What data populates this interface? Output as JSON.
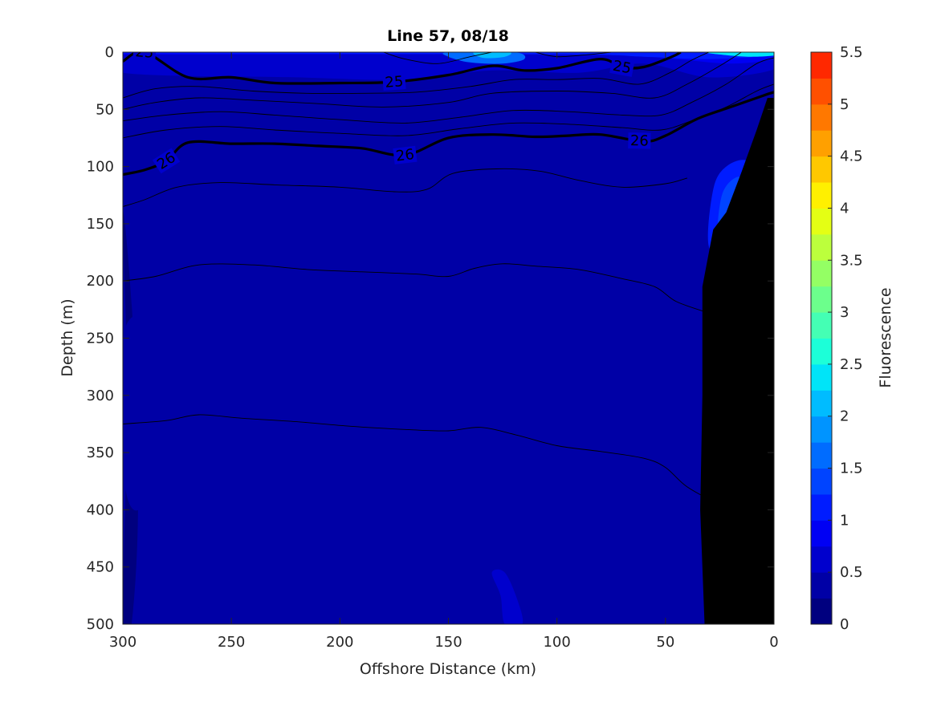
{
  "chart_data": {
    "type": "heatmap",
    "title": "Line 57, 08/18",
    "xlabel": "Offshore Distance (km)",
    "ylabel": "Depth (m)",
    "colorbar_label": "Fluorescence",
    "xlim": [
      300,
      0
    ],
    "ylim": [
      500,
      0
    ],
    "x_reversed": true,
    "y_reversed": true,
    "xticks": [
      300,
      250,
      200,
      150,
      100,
      50,
      0
    ],
    "yticks": [
      0,
      50,
      100,
      150,
      200,
      250,
      300,
      350,
      400,
      450,
      500
    ],
    "colorbar": {
      "min": 0,
      "max": 5.5,
      "ticks": [
        "0",
        "0.5",
        "1",
        "1.5",
        "2",
        "2.5",
        "3",
        "3.5",
        "4",
        "4.5",
        "5",
        "5.5"
      ],
      "levels": [
        0,
        0.25,
        0.5,
        0.75,
        1,
        1.25,
        1.5,
        1.75,
        2,
        2.25,
        2.5,
        2.75,
        3,
        3.25,
        3.5,
        3.75,
        4,
        4.25,
        4.5,
        4.75,
        5,
        5.25,
        5.5
      ],
      "colors": [
        "#00007f",
        "#0000a6",
        "#0000cd",
        "#0000f4",
        "#001cff",
        "#0044ff",
        "#006cff",
        "#0094ff",
        "#00bcff",
        "#00e4f8",
        "#1cffd8",
        "#44ffb4",
        "#6cff8c",
        "#94ff64",
        "#bcff3c",
        "#e4ff14",
        "#fff000",
        "#ffc800",
        "#ffa000",
        "#ff7800",
        "#ff5000",
        "#ff2800",
        "#f00000",
        "#c80000",
        "#a00000",
        "#800000"
      ]
    },
    "density_contours": [
      {
        "level": "25",
        "label_x": [
          290,
          175,
          70
        ],
        "points": [
          [
            300,
            8
          ],
          [
            290,
            0
          ],
          [
            270,
            22
          ],
          [
            250,
            22
          ],
          [
            230,
            27
          ],
          [
            200,
            27
          ],
          [
            175,
            26
          ],
          [
            150,
            20
          ],
          [
            130,
            12
          ],
          [
            115,
            16
          ],
          [
            100,
            14
          ],
          [
            80,
            6
          ],
          [
            70,
            13
          ],
          [
            60,
            13
          ],
          [
            47,
            4
          ],
          [
            43,
            0
          ]
        ]
      },
      {
        "level": "26",
        "label_x": [
          280,
          170,
          62
        ],
        "points": [
          [
            300,
            107
          ],
          [
            290,
            103
          ],
          [
            280,
            95
          ],
          [
            270,
            79
          ],
          [
            250,
            80
          ],
          [
            230,
            80
          ],
          [
            210,
            82
          ],
          [
            190,
            84
          ],
          [
            170,
            90
          ],
          [
            150,
            75
          ],
          [
            130,
            72
          ],
          [
            110,
            74
          ],
          [
            95,
            73
          ],
          [
            80,
            72
          ],
          [
            60,
            78
          ],
          [
            50,
            73
          ],
          [
            35,
            58
          ],
          [
            20,
            48
          ],
          [
            5,
            38
          ],
          [
            0,
            35
          ]
        ]
      }
    ],
    "thin_contours": [
      [
        [
          300,
          40
        ],
        [
          285,
          32
        ],
        [
          265,
          30
        ],
        [
          240,
          34
        ],
        [
          215,
          36
        ],
        [
          190,
          36
        ],
        [
          165,
          35
        ],
        [
          140,
          30
        ],
        [
          120,
          24
        ],
        [
          100,
          24
        ],
        [
          80,
          23
        ],
        [
          62,
          28
        ],
        [
          48,
          18
        ],
        [
          38,
          7
        ],
        [
          30,
          0
        ]
      ],
      [
        [
          300,
          50
        ],
        [
          285,
          44
        ],
        [
          265,
          40
        ],
        [
          240,
          42
        ],
        [
          210,
          45
        ],
        [
          180,
          48
        ],
        [
          150,
          44
        ],
        [
          130,
          36
        ],
        [
          100,
          34
        ],
        [
          75,
          36
        ],
        [
          55,
          40
        ],
        [
          40,
          28
        ],
        [
          25,
          12
        ],
        [
          15,
          0
        ]
      ],
      [
        [
          300,
          60
        ],
        [
          280,
          55
        ],
        [
          255,
          52
        ],
        [
          230,
          55
        ],
        [
          200,
          59
        ],
        [
          170,
          62
        ],
        [
          145,
          57
        ],
        [
          120,
          51
        ],
        [
          95,
          52
        ],
        [
          70,
          55
        ],
        [
          52,
          55
        ],
        [
          38,
          44
        ],
        [
          22,
          28
        ],
        [
          8,
          10
        ],
        [
          0,
          5
        ]
      ],
      [
        [
          300,
          75
        ],
        [
          280,
          68
        ],
        [
          255,
          65
        ],
        [
          230,
          68
        ],
        [
          200,
          71
        ],
        [
          170,
          73
        ],
        [
          145,
          67
        ],
        [
          120,
          62
        ],
        [
          95,
          63
        ],
        [
          70,
          66
        ],
        [
          52,
          68
        ],
        [
          38,
          60
        ],
        [
          22,
          48
        ],
        [
          8,
          34
        ],
        [
          0,
          28
        ]
      ],
      [
        [
          300,
          135
        ],
        [
          290,
          129
        ],
        [
          275,
          118
        ],
        [
          255,
          114
        ],
        [
          230,
          116
        ],
        [
          200,
          118
        ],
        [
          175,
          122
        ],
        [
          160,
          120
        ],
        [
          148,
          106
        ],
        [
          128,
          102
        ],
        [
          108,
          104
        ],
        [
          90,
          112
        ],
        [
          70,
          118
        ],
        [
          50,
          115
        ],
        [
          40,
          110
        ]
      ],
      [
        [
          300,
          200
        ],
        [
          285,
          196
        ],
        [
          265,
          186
        ],
        [
          240,
          186
        ],
        [
          215,
          190
        ],
        [
          190,
          192
        ],
        [
          165,
          194
        ],
        [
          150,
          196
        ],
        [
          138,
          189
        ],
        [
          125,
          185
        ],
        [
          110,
          187
        ],
        [
          90,
          190
        ],
        [
          70,
          198
        ],
        [
          55,
          205
        ],
        [
          45,
          218
        ],
        [
          30,
          228
        ]
      ],
      [
        [
          300,
          325
        ],
        [
          280,
          322
        ],
        [
          265,
          317
        ],
        [
          245,
          320
        ],
        [
          220,
          323
        ],
        [
          195,
          327
        ],
        [
          168,
          330
        ],
        [
          150,
          331
        ],
        [
          135,
          328
        ],
        [
          118,
          335
        ],
        [
          100,
          344
        ],
        [
          80,
          349
        ],
        [
          60,
          355
        ],
        [
          50,
          363
        ],
        [
          40,
          380
        ],
        [
          25,
          395
        ],
        [
          15,
          400
        ]
      ],
      [
        [
          110,
          0
        ],
        [
          100,
          4
        ],
        [
          85,
          2
        ],
        [
          75,
          0
        ]
      ],
      [
        [
          180,
          0
        ],
        [
          170,
          6
        ],
        [
          155,
          10
        ],
        [
          140,
          4
        ],
        [
          130,
          0
        ]
      ]
    ],
    "field_patches": [
      {
        "level": 1,
        "points": [
          [
            300,
            0
          ],
          [
            0,
            0
          ],
          [
            0,
            30
          ],
          [
            30,
            40
          ],
          [
            60,
            42
          ],
          [
            120,
            32
          ],
          [
            160,
            38
          ],
          [
            220,
            32
          ],
          [
            300,
            30
          ]
        ]
      },
      {
        "level": 2,
        "points": [
          [
            300,
            0
          ],
          [
            0,
            0
          ],
          [
            0,
            15
          ],
          [
            30,
            22
          ],
          [
            60,
            10
          ],
          [
            90,
            18
          ],
          [
            130,
            16
          ],
          [
            170,
            24
          ],
          [
            220,
            22
          ],
          [
            300,
            18
          ]
        ]
      },
      {
        "level": 3,
        "points": [
          [
            300,
            0
          ],
          [
            0,
            0
          ],
          [
            0,
            6
          ],
          [
            20,
            10
          ],
          [
            45,
            6
          ],
          [
            75,
            2
          ],
          [
            300,
            2
          ]
        ]
      },
      {
        "level": 4,
        "points": [
          [
            300,
            0
          ],
          [
            0,
            0
          ],
          [
            0,
            3
          ],
          [
            30,
            6
          ],
          [
            60,
            4
          ],
          [
            100,
            2
          ],
          [
            300,
            1
          ]
        ]
      },
      {
        "level": 6,
        "points": [
          [
            150,
            0
          ],
          [
            120,
            0
          ],
          [
            115,
            6
          ],
          [
            125,
            10
          ],
          [
            140,
            9
          ],
          [
            150,
            4
          ]
        ]
      },
      {
        "level": 8,
        "points": [
          [
            138,
            0
          ],
          [
            122,
            0
          ],
          [
            124,
            4
          ],
          [
            134,
            5
          ]
        ]
      },
      {
        "level": 9,
        "points": [
          [
            30,
            0
          ],
          [
            0,
            0
          ],
          [
            0,
            3
          ],
          [
            12,
            4
          ],
          [
            25,
            2
          ]
        ]
      },
      {
        "level": 9,
        "points": [
          [
            8,
            0
          ],
          [
            0,
            0
          ],
          [
            0,
            2
          ],
          [
            5,
            2
          ]
        ]
      },
      {
        "level": 4,
        "points": [
          [
            30,
            170
          ],
          [
            28,
            120
          ],
          [
            22,
            100
          ],
          [
            12,
            95
          ],
          [
            5,
            115
          ],
          [
            10,
            150
          ],
          [
            20,
            175
          ]
        ]
      },
      {
        "level": 5,
        "points": [
          [
            26,
            160
          ],
          [
            24,
            125
          ],
          [
            18,
            110
          ],
          [
            12,
            112
          ],
          [
            10,
            130
          ],
          [
            15,
            150
          ],
          [
            22,
            162
          ]
        ]
      },
      {
        "level": 1,
        "points": [
          [
            155,
            70
          ],
          [
            152,
            120
          ],
          [
            150,
            300
          ],
          [
            148,
            420
          ],
          [
            152,
            500
          ],
          [
            132,
            500
          ],
          [
            130,
            400
          ],
          [
            132,
            250
          ],
          [
            135,
            120
          ],
          [
            138,
            72
          ]
        ]
      },
      {
        "level": 1,
        "points": [
          [
            108,
            75
          ],
          [
            106,
            200
          ],
          [
            104,
            350
          ],
          [
            108,
            500
          ],
          [
            125,
            500
          ],
          [
            124,
            350
          ],
          [
            122,
            200
          ],
          [
            124,
            80
          ]
        ]
      },
      {
        "level": 1,
        "points": [
          [
            233,
            95
          ],
          [
            231,
            250
          ],
          [
            233,
            400
          ],
          [
            237,
            500
          ],
          [
            262,
            500
          ],
          [
            268,
            430
          ],
          [
            275,
            360
          ],
          [
            278,
            250
          ],
          [
            275,
            140
          ],
          [
            260,
            100
          ]
        ]
      },
      {
        "level": 1,
        "points": [
          [
            300,
            120
          ],
          [
            296,
            280
          ],
          [
            297,
            420
          ],
          [
            300,
            500
          ],
          [
            292,
            500
          ],
          [
            288,
            450
          ],
          [
            290,
            300
          ],
          [
            292,
            150
          ]
        ]
      },
      {
        "level": 0,
        "points": [
          [
            300,
            140
          ],
          [
            298,
            300
          ],
          [
            300,
            500
          ],
          [
            296,
            500
          ],
          [
            293,
            400
          ],
          [
            295,
            250
          ]
        ]
      },
      {
        "level": 2,
        "points": [
          [
            130,
            455
          ],
          [
            126,
            475
          ],
          [
            124,
            500
          ],
          [
            116,
            500
          ],
          [
            118,
            480
          ],
          [
            124,
            455
          ]
        ]
      },
      {
        "level": 1,
        "points": [
          [
            290,
            230
          ],
          [
            282,
            260
          ],
          [
            278,
            320
          ],
          [
            285,
            380
          ],
          [
            295,
            400
          ],
          [
            300,
            360
          ],
          [
            300,
            250
          ]
        ]
      }
    ],
    "bathymetry_polygon": [
      [
        0,
        40
      ],
      [
        3,
        40
      ],
      [
        8,
        68
      ],
      [
        15,
        105
      ],
      [
        22,
        140
      ],
      [
        28,
        155
      ],
      [
        33,
        205
      ],
      [
        33,
        300
      ],
      [
        34,
        400
      ],
      [
        33,
        450
      ],
      [
        32,
        500
      ],
      [
        0,
        500
      ]
    ]
  }
}
